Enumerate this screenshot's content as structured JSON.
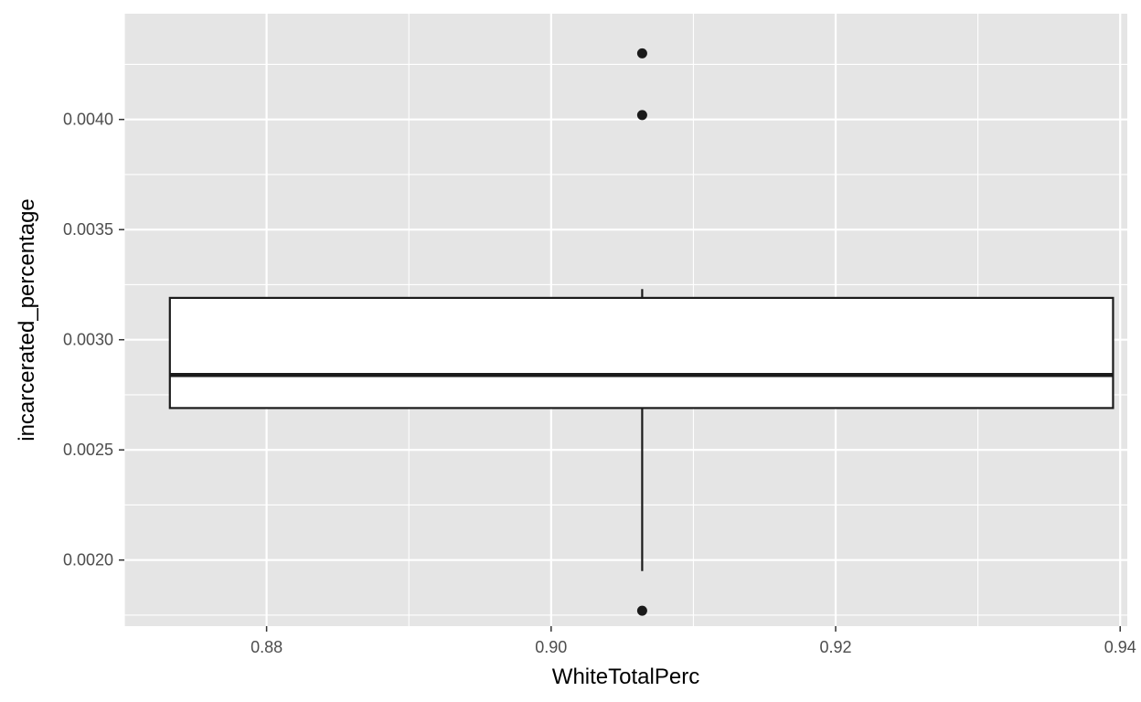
{
  "chart_data": {
    "type": "box",
    "title": "",
    "xlabel": "WhiteTotalPerc",
    "ylabel": "incarcerated_percentage",
    "xlim": [
      0.87,
      0.9405
    ],
    "ylim": [
      0.0017,
      0.00448
    ],
    "x_ticks": [
      0.88,
      0.9,
      0.92,
      0.94
    ],
    "x_tick_labels": [
      "0.88",
      "0.90",
      "0.92",
      "0.94"
    ],
    "y_ticks": [
      0.002,
      0.0025,
      0.003,
      0.0035,
      0.004
    ],
    "y_tick_labels": [
      "0.0020",
      "0.0025",
      "0.0030",
      "0.0035",
      "0.0040"
    ],
    "grid": true,
    "colors": {
      "panel": "#e5e5e5",
      "grid": "#ffffff",
      "box_fill": "#ffffff",
      "box_line": "#1a1a1a"
    },
    "box": {
      "x": 0.9064,
      "x_left": 0.8732,
      "x_right": 0.9395,
      "whisker_low": 0.00195,
      "q1": 0.00269,
      "median": 0.00284,
      "q3": 0.00319,
      "whisker_high": 0.00323,
      "outliers": [
        0.00177,
        0.00402,
        0.0043
      ]
    }
  }
}
